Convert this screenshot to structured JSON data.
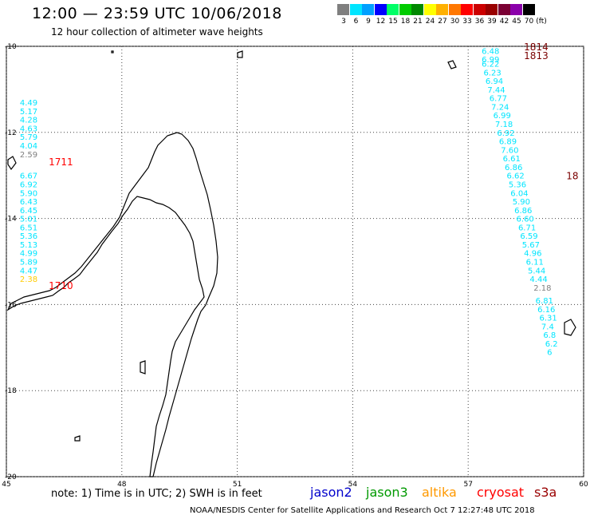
{
  "header": {
    "title": "12:00 — 23:59 UTC 10/06/2018",
    "subtitle": "12 hour collection of altimeter wave heights"
  },
  "legend": {
    "unit": "(ft)",
    "bins": [
      {
        "label": "3",
        "color": "#7f7f7f"
      },
      {
        "label": "6",
        "color": "#00e5ff"
      },
      {
        "label": "9",
        "color": "#00a0ff"
      },
      {
        "label": "12",
        "color": "#0000ff"
      },
      {
        "label": "15",
        "color": "#00ff66"
      },
      {
        "label": "18",
        "color": "#00cc00"
      },
      {
        "label": "21",
        "color": "#008800"
      },
      {
        "label": "24",
        "color": "#ffff00"
      },
      {
        "label": "27",
        "color": "#ffb000"
      },
      {
        "label": "30",
        "color": "#ff7700"
      },
      {
        "label": "33",
        "color": "#ff0000"
      },
      {
        "label": "36",
        "color": "#cc0000"
      },
      {
        "label": "39",
        "color": "#990000"
      },
      {
        "label": "42",
        "color": "#7a0033"
      },
      {
        "label": "45",
        "color": "#8a00aa"
      },
      {
        "label": "70",
        "color": "#000000"
      }
    ]
  },
  "map": {
    "lon_range": [
      45,
      60
    ],
    "lat_range": [
      -20,
      -10
    ],
    "lon_ticks": [
      "45",
      "48",
      "51",
      "54",
      "57",
      "60"
    ],
    "lat_ticks": [
      "-10",
      "-12",
      "-14",
      "-16",
      "-18",
      "-20"
    ],
    "gridlines": true
  },
  "tracks": [
    {
      "color": "#00e5ff",
      "label": "1711",
      "label_color": "#ff0000",
      "points": [
        {
          "lon": 45.35,
          "lat": -11.3,
          "v": "4.49"
        },
        {
          "lon": 45.35,
          "lat": -11.5,
          "v": "5.17"
        },
        {
          "lon": 45.35,
          "lat": -11.7,
          "v": "4.28"
        },
        {
          "lon": 45.35,
          "lat": -11.9,
          "v": "4.63"
        },
        {
          "lon": 45.35,
          "lat": -12.1,
          "v": "5.79"
        },
        {
          "lon": 45.35,
          "lat": -12.3,
          "v": "4.04"
        },
        {
          "lon": 45.35,
          "lat": -12.5,
          "v": "2.59",
          "color": "#7f7f7f"
        },
        {
          "lon": 45.35,
          "lat": -13.0,
          "v": "6.67"
        },
        {
          "lon": 45.35,
          "lat": -13.2,
          "v": "6.92"
        },
        {
          "lon": 45.35,
          "lat": -13.4,
          "v": "5.90"
        },
        {
          "lon": 45.35,
          "lat": -13.6,
          "v": "6.43"
        },
        {
          "lon": 45.35,
          "lat": -13.8,
          "v": "6.45"
        },
        {
          "lon": 45.35,
          "lat": -14.0,
          "v": "5.01"
        },
        {
          "lon": 45.35,
          "lat": -14.2,
          "v": "6.51"
        },
        {
          "lon": 45.35,
          "lat": -14.4,
          "v": "5.36"
        },
        {
          "lon": 45.35,
          "lat": -14.6,
          "v": "5.13"
        },
        {
          "lon": 45.35,
          "lat": -14.8,
          "v": "4.99"
        },
        {
          "lon": 45.35,
          "lat": -15.0,
          "v": "5.89"
        },
        {
          "lon": 45.35,
          "lat": -15.2,
          "v": "4.47"
        },
        {
          "lon": 45.35,
          "lat": -15.4,
          "v": "2.38",
          "color": "#ffcc00"
        }
      ]
    },
    {
      "color": "#00e5ff",
      "label": "1813",
      "label_color": "#7a0000",
      "points": [
        {
          "lon": 57.35,
          "lat": -10.1,
          "v": "6.48"
        },
        {
          "lon": 57.35,
          "lat": -10.3,
          "v": "6.99"
        },
        {
          "lon": 57.35,
          "lat": -10.4,
          "v": "6.22"
        },
        {
          "lon": 57.4,
          "lat": -10.6,
          "v": "6.23"
        },
        {
          "lon": 57.45,
          "lat": -10.8,
          "v": "6.94"
        },
        {
          "lon": 57.5,
          "lat": -11.0,
          "v": "7.44"
        },
        {
          "lon": 57.55,
          "lat": -11.2,
          "v": "6.77"
        },
        {
          "lon": 57.6,
          "lat": -11.4,
          "v": "7.24"
        },
        {
          "lon": 57.65,
          "lat": -11.6,
          "v": "6.99"
        },
        {
          "lon": 57.7,
          "lat": -11.8,
          "v": "7.18"
        },
        {
          "lon": 57.75,
          "lat": -12.0,
          "v": "6.92"
        },
        {
          "lon": 57.8,
          "lat": -12.2,
          "v": "6.89"
        },
        {
          "lon": 57.85,
          "lat": -12.4,
          "v": "7.60"
        },
        {
          "lon": 57.9,
          "lat": -12.6,
          "v": "6.61"
        },
        {
          "lon": 57.95,
          "lat": -12.8,
          "v": "6.86"
        },
        {
          "lon": 58.0,
          "lat": -13.0,
          "v": "6.62"
        },
        {
          "lon": 58.05,
          "lat": -13.2,
          "v": "5.36"
        },
        {
          "lon": 58.1,
          "lat": -13.4,
          "v": "6.04"
        },
        {
          "lon": 58.15,
          "lat": -13.6,
          "v": "5.90"
        },
        {
          "lon": 58.2,
          "lat": -13.8,
          "v": "6.86"
        },
        {
          "lon": 58.25,
          "lat": -14.0,
          "v": "6.60"
        },
        {
          "lon": 58.3,
          "lat": -14.2,
          "v": "6.71"
        },
        {
          "lon": 58.35,
          "lat": -14.4,
          "v": "6.59"
        },
        {
          "lon": 58.4,
          "lat": -14.6,
          "v": "5.67"
        },
        {
          "lon": 58.45,
          "lat": -14.8,
          "v": "4.96"
        },
        {
          "lon": 58.5,
          "lat": -15.0,
          "v": "6.11"
        },
        {
          "lon": 58.55,
          "lat": -15.2,
          "v": "5.44"
        },
        {
          "lon": 58.6,
          "lat": -15.4,
          "v": "4.44"
        },
        {
          "lon": 58.7,
          "lat": -15.6,
          "v": "2.18",
          "color": "#7f7f7f"
        },
        {
          "lon": 58.75,
          "lat": -15.9,
          "v": "6.81"
        },
        {
          "lon": 58.8,
          "lat": -16.1,
          "v": "6.16"
        },
        {
          "lon": 58.85,
          "lat": -16.3,
          "v": "6.31"
        },
        {
          "lon": 58.9,
          "lat": -16.5,
          "v": "7.4"
        },
        {
          "lon": 58.95,
          "lat": -16.7,
          "v": "6.8"
        },
        {
          "lon": 59.0,
          "lat": -16.9,
          "v": "6.2"
        },
        {
          "lon": 59.05,
          "lat": -17.1,
          "v": "6"
        }
      ]
    }
  ],
  "pass_labels": [
    {
      "text": "1711",
      "lon": 46.1,
      "lat": -12.67,
      "color": "#ff0000"
    },
    {
      "text": "1710",
      "lon": 46.1,
      "lat": -15.55,
      "color": "#ff0000"
    },
    {
      "text": "1814",
      "lon": 58.45,
      "lat": -10.0,
      "color": "#7a0000"
    },
    {
      "text": "1813",
      "lon": 58.45,
      "lat": -10.2,
      "color": "#7a0000"
    },
    {
      "text": "18",
      "lon": 59.55,
      "lat": -13.0,
      "color": "#7a0000"
    }
  ],
  "footer": {
    "note": "note: 1) Time is in UTC; 2) SWH is in feet",
    "satellites": [
      {
        "name": "jason2",
        "color": "#0000cc"
      },
      {
        "name": "jason3",
        "color": "#009900"
      },
      {
        "name": "altika",
        "color": "#ff9900"
      },
      {
        "name": "cryosat",
        "color": "#ff0000"
      },
      {
        "name": "s3a",
        "color": "#990000"
      }
    ],
    "credit": "NOAA/NESDIS Center for Satellite Applications and Research    Oct  7 12:27:48 UTC 2018"
  }
}
